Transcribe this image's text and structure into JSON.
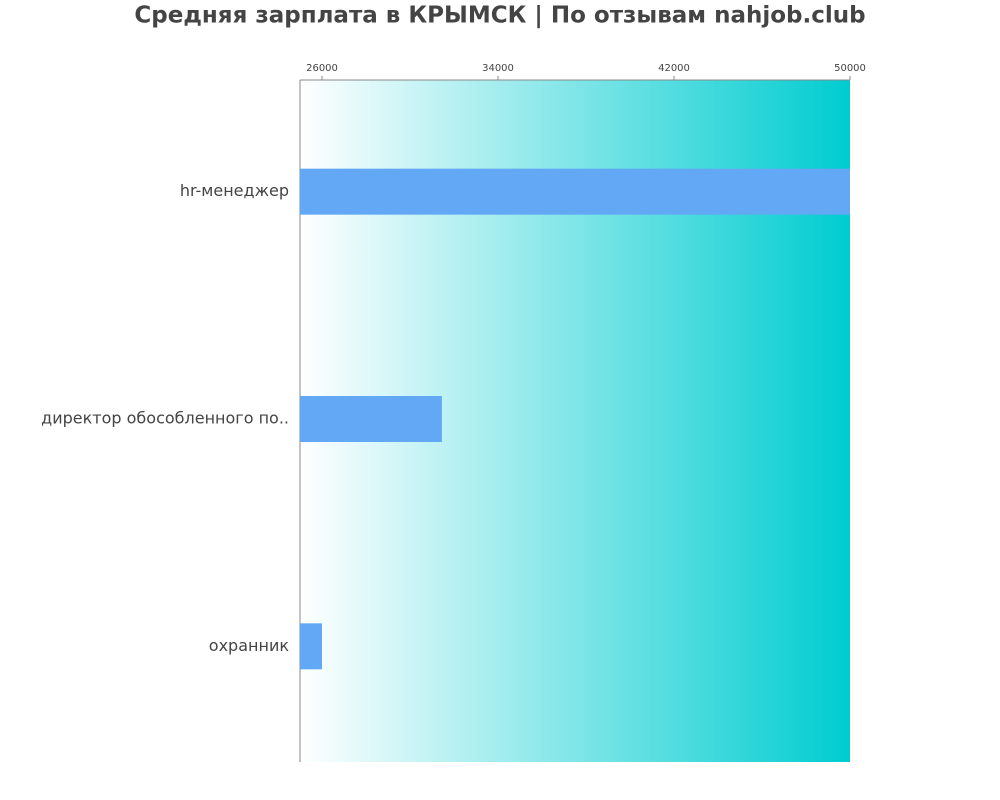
{
  "chart_data": {
    "type": "barh",
    "title": "Средняя зарплата в КРЫМСК | По отзывам nahjob.club",
    "categories": [
      "hr-менеджер",
      "директор обособленного по..",
      "охранник"
    ],
    "values": [
      50000,
      31450,
      26000
    ],
    "color": "#63a8f5",
    "xlim": [
      25000,
      50000
    ],
    "xticks": [
      26000,
      34000,
      42000,
      50000
    ],
    "background_gradient": [
      "#ffffff",
      "#00ccd0"
    ]
  }
}
